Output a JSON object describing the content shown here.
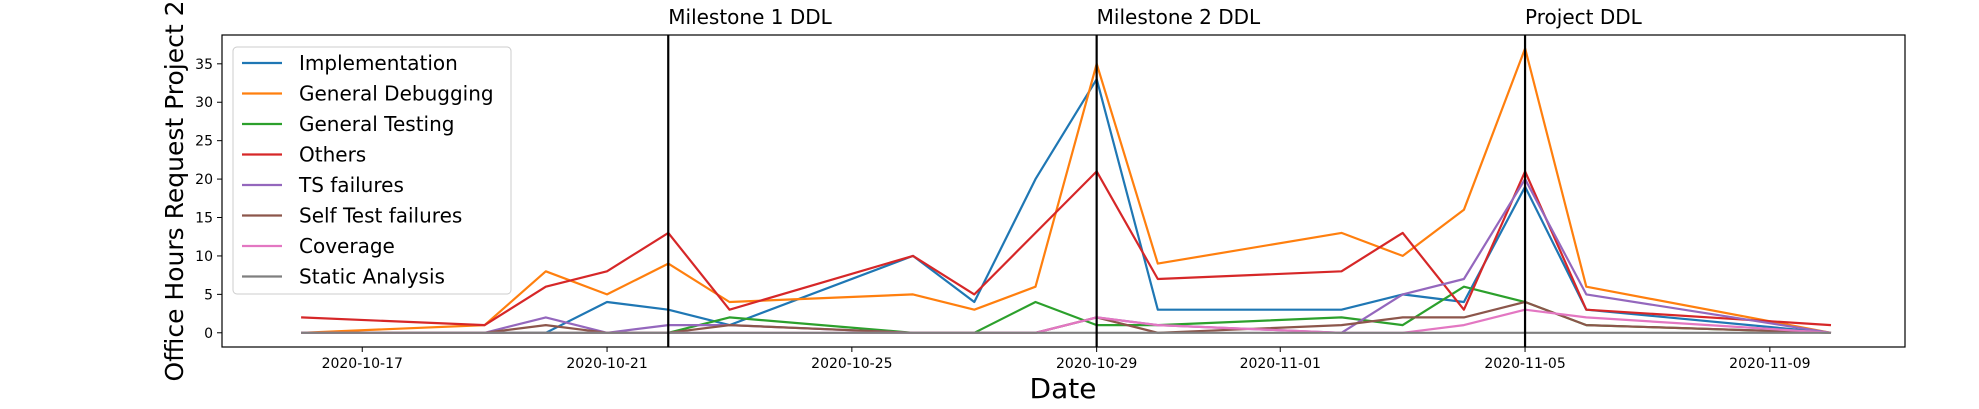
{
  "chart_data": {
    "type": "line",
    "title": "",
    "xlabel": "Date",
    "ylabel": "Office Hours Request Project 2",
    "x": [
      "2020-10-16",
      "2020-10-19",
      "2020-10-20",
      "2020-10-21",
      "2020-10-22",
      "2020-10-23",
      "2020-10-26",
      "2020-10-27",
      "2020-10-28",
      "2020-10-29",
      "2020-10-30",
      "2020-11-02",
      "2020-11-03",
      "2020-11-04",
      "2020-11-05",
      "2020-11-06",
      "2020-11-10"
    ],
    "xlim": [
      "2020-10-14T17:00",
      "2020-11-11T05:00"
    ],
    "ylim": [
      -1.85,
      38.75
    ],
    "xticks": [
      "2020-10-17",
      "2020-10-21",
      "2020-10-25",
      "2020-10-29",
      "2020-11-01",
      "2020-11-05",
      "2020-11-09"
    ],
    "yticks": [
      0,
      5,
      10,
      15,
      20,
      25,
      30,
      35
    ],
    "grid": false,
    "legend_position": "top-left",
    "series": [
      {
        "name": "Implementation",
        "color": "#1f77b4",
        "values": [
          0,
          0,
          0,
          4,
          3,
          1,
          10,
          4,
          20,
          33,
          3,
          3,
          5,
          4,
          19,
          3,
          0
        ]
      },
      {
        "name": "General Debugging",
        "color": "#ff7f0e",
        "values": [
          0,
          1,
          8,
          5,
          9,
          4,
          5,
          3,
          6,
          35,
          9,
          13,
          10,
          16,
          37,
          6,
          0
        ]
      },
      {
        "name": "General Testing",
        "color": "#2ca02c",
        "values": [
          0,
          0,
          0,
          0,
          0,
          2,
          0,
          0,
          4,
          1,
          1,
          2,
          1,
          6,
          4,
          1,
          0
        ]
      },
      {
        "name": "Others",
        "color": "#d62728",
        "values": [
          2,
          1,
          6,
          8,
          13,
          3,
          10,
          5,
          13,
          21,
          7,
          8,
          13,
          3,
          21,
          3,
          1
        ]
      },
      {
        "name": "TS failures",
        "color": "#9467bd",
        "values": [
          0,
          0,
          2,
          0,
          1,
          1,
          0,
          0,
          0,
          2,
          1,
          0,
          5,
          7,
          20,
          5,
          0
        ]
      },
      {
        "name": "Self Test failures",
        "color": "#8c564b",
        "values": [
          0,
          0,
          1,
          0,
          0,
          1,
          0,
          0,
          0,
          2,
          0,
          1,
          2,
          2,
          4,
          1,
          0
        ]
      },
      {
        "name": "Coverage",
        "color": "#e377c2",
        "values": [
          0,
          0,
          0,
          0,
          0,
          0,
          0,
          0,
          0,
          2,
          1,
          0,
          0,
          1,
          3,
          2,
          0
        ]
      },
      {
        "name": "Static Analysis",
        "color": "#7f7f7f",
        "values": [
          0,
          0,
          0,
          0,
          0,
          0,
          0,
          0,
          0,
          0,
          0,
          0,
          0,
          0,
          0,
          0,
          0
        ]
      }
    ],
    "annotations": [
      {
        "label": "Milestone 1 DDL",
        "date": "2020-10-22"
      },
      {
        "label": "Milestone 2 DDL",
        "date": "2020-10-29"
      },
      {
        "label": "Project DDL",
        "date": "2020-11-05"
      }
    ]
  }
}
